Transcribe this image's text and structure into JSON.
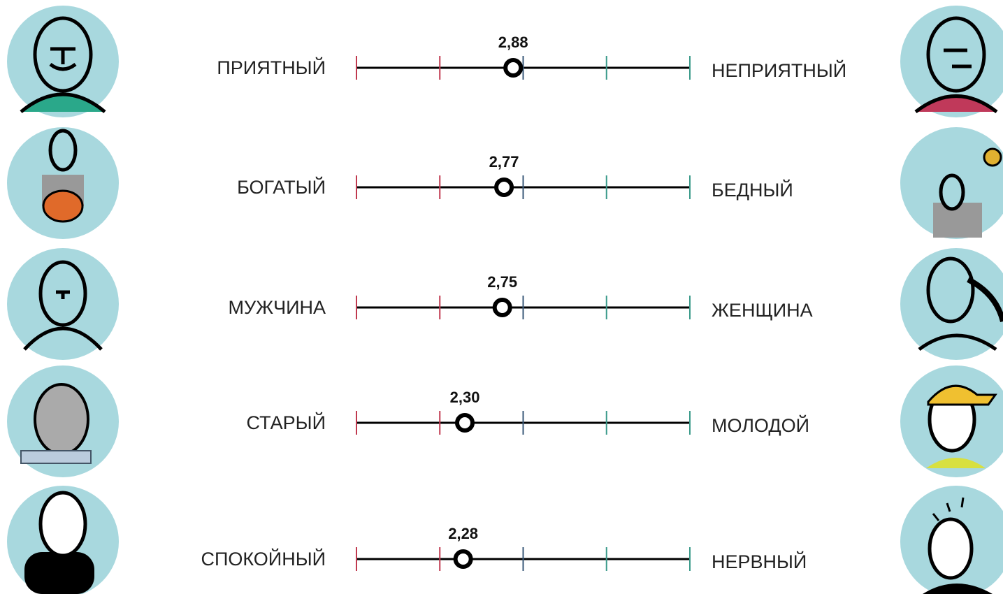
{
  "chart_data": {
    "type": "dot",
    "left_labels": [
      "ПРИЯТНЫЙ",
      "БОГАТЫЙ",
      "МУЖЧИНА",
      "СТАРЫЙ",
      "СПОКОЙНЫЙ"
    ],
    "right_labels": [
      "НЕПРИЯТНЫЙ",
      "БЕДНЫЙ",
      "ЖЕНЩИНА",
      "МОЛОДОЙ",
      "НЕРВНЫЙ"
    ],
    "values": [
      2.88,
      2.77,
      2.75,
      2.3,
      2.28
    ],
    "value_labels": [
      "2,88",
      "2,77",
      "2,75",
      "2,30",
      "2,28"
    ],
    "xlim": [
      1,
      5
    ],
    "xticks": [
      1,
      2,
      3,
      4,
      5
    ],
    "tick_colors": [
      "#c0394f",
      "#c0394f",
      "#3a5a7a",
      "#3a9a8a",
      "#3a9a8a"
    ],
    "color": "#000000"
  }
}
